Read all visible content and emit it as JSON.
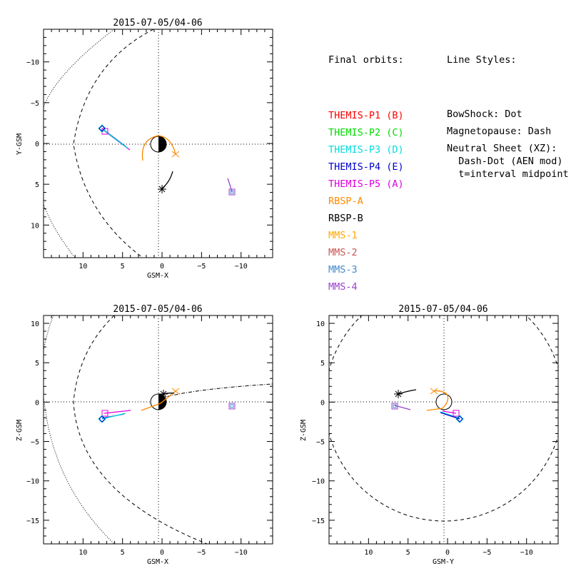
{
  "panels": [
    {
      "id": "xy",
      "title": "2015-07-05/04-06",
      "xlabel": "GSM-X",
      "ylabel": "Y-GSM",
      "x_range": [
        15,
        -14
      ],
      "y_range": [
        -14,
        14
      ],
      "x_ticks": [
        10,
        5,
        0,
        -5,
        -10
      ],
      "x_tick_labels": [
        "10",
        "5",
        "0",
        "−5",
        "−10"
      ],
      "y_ticks": [
        -10,
        -5,
        0,
        5,
        10
      ],
      "y_tick_labels": [
        "−10",
        "−5",
        "0",
        "5",
        "10"
      ]
    },
    {
      "id": "xz",
      "title": "2015-07-05/04-06",
      "xlabel": "GSM-X",
      "ylabel": "Z-GSM",
      "x_range": [
        15,
        -14
      ],
      "y_range": [
        11,
        -18
      ],
      "x_ticks": [
        10,
        5,
        0,
        -5,
        -10
      ],
      "x_tick_labels": [
        "10",
        "5",
        "0",
        "−5",
        "−10"
      ],
      "y_ticks": [
        10,
        5,
        0,
        -5,
        -10,
        -15
      ],
      "y_tick_labels": [
        "10",
        "5",
        "0",
        "−5",
        "−10",
        "−15"
      ]
    },
    {
      "id": "yz",
      "title": "2015-07-05/04-06",
      "xlabel": "GSM-Y",
      "ylabel": "Z-GSM",
      "x_range": [
        15,
        -14
      ],
      "y_range": [
        11,
        -18
      ],
      "x_ticks": [
        10,
        5,
        0,
        -5,
        -10
      ],
      "x_tick_labels": [
        "10",
        "5",
        "0",
        "−5",
        "−10"
      ],
      "y_ticks": [
        10,
        5,
        0,
        -5,
        -10,
        -15
      ],
      "y_tick_labels": [
        "10",
        "5",
        "0",
        "−5",
        "−10",
        "−15"
      ]
    }
  ],
  "legend": {
    "orbits_header": "Final orbits:",
    "orbits": [
      {
        "label": "THEMIS-P1 (B)",
        "color": "#ff0000"
      },
      {
        "label": "THEMIS-P2 (C)",
        "color": "#00dd00"
      },
      {
        "label": "THEMIS-P3 (D)",
        "color": "#00dddd"
      },
      {
        "label": "THEMIS-P4 (E)",
        "color": "#0000cc"
      },
      {
        "label": "THEMIS-P5 (A)",
        "color": "#dd00dd"
      },
      {
        "label": "RBSP-A",
        "color": "#ff8800"
      },
      {
        "label": "RBSP-B",
        "color": "#000000"
      },
      {
        "label": "MMS-1",
        "color": "#ffaa00"
      },
      {
        "label": "MMS-2",
        "color": "#cc5555"
      },
      {
        "label": "MMS-3",
        "color": "#4488cc"
      },
      {
        "label": "MMS-4",
        "color": "#9944cc"
      }
    ],
    "styles_header": "Line Styles:",
    "styles": [
      "BowShock: Dot",
      "Magnetopause: Dash",
      "Neutral Sheet (XZ):",
      "  Dash-Dot (AEN mod)",
      "  t=interval midpoint"
    ]
  }
}
